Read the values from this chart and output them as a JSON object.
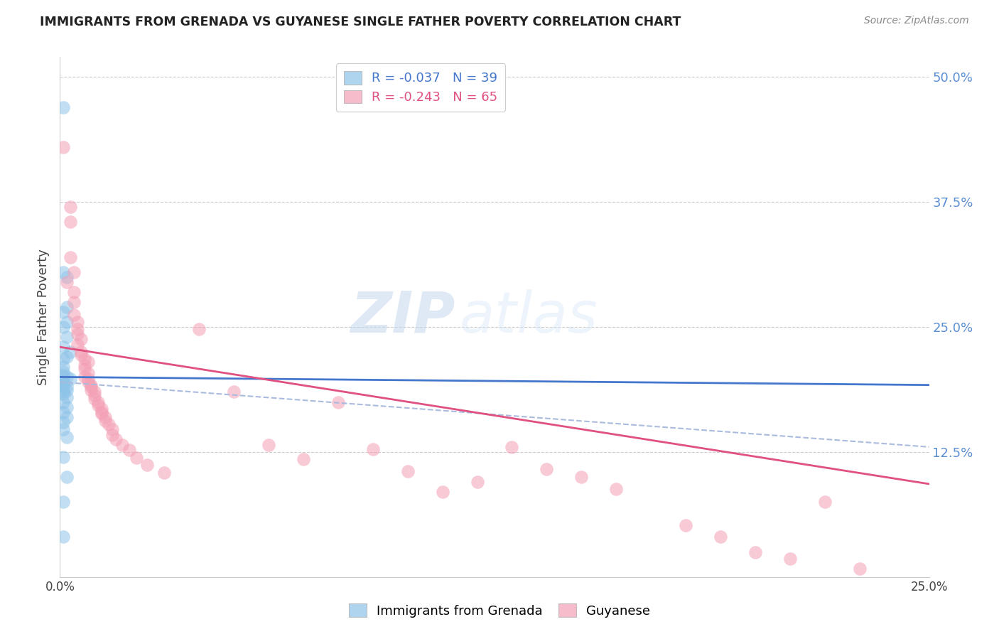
{
  "title": "IMMIGRANTS FROM GRENADA VS GUYANESE SINGLE FATHER POVERTY CORRELATION CHART",
  "source": "Source: ZipAtlas.com",
  "ylabel": "Single Father Poverty",
  "xlim": [
    0.0,
    0.25
  ],
  "ylim": [
    0.0,
    0.52
  ],
  "color_blue": "#8ec4e8",
  "color_pink": "#f4a0b5",
  "color_line_blue": "#4477cc",
  "color_line_pink": "#e05080",
  "color_line_dashed": "#aabbdd",
  "watermark_zip": "ZIP",
  "watermark_atlas": "atlas",
  "blue_line_y0": 0.2,
  "blue_line_y1": 0.192,
  "pink_line_y0": 0.23,
  "pink_line_y1": 0.093,
  "dash_line_y0": 0.195,
  "dash_line_y1": 0.13,
  "grenada_points": [
    [
      0.001,
      0.47
    ],
    [
      0.001,
      0.305
    ],
    [
      0.002,
      0.3
    ],
    [
      0.002,
      0.27
    ],
    [
      0.001,
      0.265
    ],
    [
      0.002,
      0.255
    ],
    [
      0.001,
      0.25
    ],
    [
      0.002,
      0.24
    ],
    [
      0.001,
      0.23
    ],
    [
      0.003,
      0.225
    ],
    [
      0.002,
      0.22
    ],
    [
      0.001,
      0.218
    ],
    [
      0.001,
      0.21
    ],
    [
      0.001,
      0.205
    ],
    [
      0.001,
      0.202
    ],
    [
      0.002,
      0.2
    ],
    [
      0.001,
      0.2
    ],
    [
      0.003,
      0.198
    ],
    [
      0.001,
      0.196
    ],
    [
      0.001,
      0.195
    ],
    [
      0.001,
      0.193
    ],
    [
      0.001,
      0.192
    ],
    [
      0.002,
      0.19
    ],
    [
      0.001,
      0.188
    ],
    [
      0.002,
      0.187
    ],
    [
      0.001,
      0.185
    ],
    [
      0.001,
      0.183
    ],
    [
      0.002,
      0.18
    ],
    [
      0.001,
      0.175
    ],
    [
      0.002,
      0.17
    ],
    [
      0.001,
      0.165
    ],
    [
      0.002,
      0.16
    ],
    [
      0.001,
      0.155
    ],
    [
      0.001,
      0.148
    ],
    [
      0.002,
      0.14
    ],
    [
      0.001,
      0.12
    ],
    [
      0.002,
      0.1
    ],
    [
      0.001,
      0.075
    ],
    [
      0.001,
      0.04
    ]
  ],
  "guyanese_points": [
    [
      0.001,
      0.43
    ],
    [
      0.003,
      0.37
    ],
    [
      0.003,
      0.355
    ],
    [
      0.003,
      0.32
    ],
    [
      0.004,
      0.305
    ],
    [
      0.002,
      0.295
    ],
    [
      0.004,
      0.285
    ],
    [
      0.004,
      0.275
    ],
    [
      0.004,
      0.262
    ],
    [
      0.005,
      0.255
    ],
    [
      0.005,
      0.248
    ],
    [
      0.005,
      0.243
    ],
    [
      0.006,
      0.238
    ],
    [
      0.005,
      0.232
    ],
    [
      0.006,
      0.225
    ],
    [
      0.006,
      0.222
    ],
    [
      0.007,
      0.218
    ],
    [
      0.008,
      0.215
    ],
    [
      0.007,
      0.212
    ],
    [
      0.007,
      0.208
    ],
    [
      0.008,
      0.204
    ],
    [
      0.007,
      0.2
    ],
    [
      0.008,
      0.198
    ],
    [
      0.008,
      0.195
    ],
    [
      0.009,
      0.192
    ],
    [
      0.009,
      0.19
    ],
    [
      0.009,
      0.187
    ],
    [
      0.01,
      0.185
    ],
    [
      0.01,
      0.182
    ],
    [
      0.01,
      0.178
    ],
    [
      0.011,
      0.175
    ],
    [
      0.011,
      0.172
    ],
    [
      0.012,
      0.168
    ],
    [
      0.012,
      0.165
    ],
    [
      0.012,
      0.163
    ],
    [
      0.013,
      0.16
    ],
    [
      0.013,
      0.156
    ],
    [
      0.014,
      0.153
    ],
    [
      0.015,
      0.148
    ],
    [
      0.015,
      0.142
    ],
    [
      0.016,
      0.138
    ],
    [
      0.018,
      0.132
    ],
    [
      0.02,
      0.127
    ],
    [
      0.022,
      0.119
    ],
    [
      0.025,
      0.112
    ],
    [
      0.03,
      0.104
    ],
    [
      0.04,
      0.248
    ],
    [
      0.05,
      0.185
    ],
    [
      0.06,
      0.132
    ],
    [
      0.07,
      0.118
    ],
    [
      0.08,
      0.175
    ],
    [
      0.09,
      0.128
    ],
    [
      0.1,
      0.106
    ],
    [
      0.11,
      0.085
    ],
    [
      0.12,
      0.095
    ],
    [
      0.13,
      0.13
    ],
    [
      0.14,
      0.108
    ],
    [
      0.15,
      0.1
    ],
    [
      0.16,
      0.088
    ],
    [
      0.18,
      0.052
    ],
    [
      0.19,
      0.04
    ],
    [
      0.2,
      0.025
    ],
    [
      0.21,
      0.018
    ],
    [
      0.22,
      0.075
    ],
    [
      0.23,
      0.008
    ]
  ]
}
